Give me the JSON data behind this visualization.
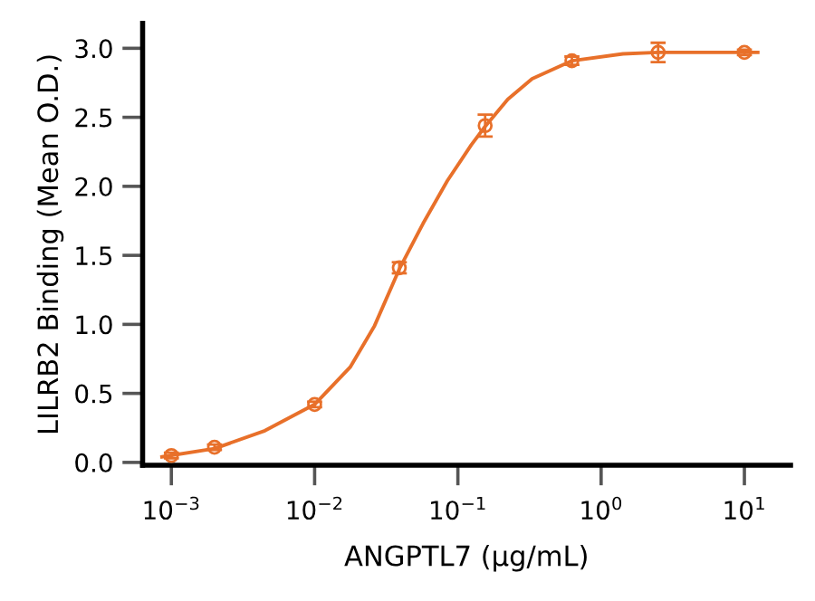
{
  "chart_data": {
    "type": "scatter",
    "xlabel": "ANGPTL7 (µg/mL)",
    "ylabel": "LILRB2 Binding (Mean O.D.)",
    "log": "x",
    "xlim": [
      0.00063,
      21
    ],
    "ylim": [
      -0.02,
      3.18
    ],
    "xticks": [
      {
        "value": 0.001,
        "label": "10$^{−3}$"
      },
      {
        "value": 0.01,
        "label": "10$^{−2}$"
      },
      {
        "value": 0.1,
        "label": "10$^{−1}$"
      },
      {
        "value": 1,
        "label": "10$^{0}$"
      },
      {
        "value": 10,
        "label": "10$^{1}$"
      }
    ],
    "yticks": [
      {
        "value": 0,
        "label": "0.0"
      },
      {
        "value": 0.5,
        "label": "0.5"
      },
      {
        "value": 1,
        "label": "1.0"
      },
      {
        "value": 1.5,
        "label": "1.5"
      },
      {
        "value": 2,
        "label": "2.0"
      },
      {
        "value": 2.5,
        "label": "2.5"
      },
      {
        "value": 3,
        "label": "3.0"
      }
    ],
    "grid": false,
    "legend": false,
    "series": [
      {
        "color": "#e8702a",
        "marker": "circle",
        "x": [
          0.001,
          0.002,
          0.01,
          0.039,
          0.155,
          0.625,
          2.5,
          10
        ],
        "values": [
          0.05,
          0.11,
          0.42,
          1.41,
          2.44,
          2.91,
          2.97,
          2.97
        ],
        "errors": [
          0.02,
          0.02,
          0.02,
          0.04,
          0.08,
          0.03,
          0.07,
          0.02
        ]
      },
      {
        "type": "line",
        "color": "#e8702a",
        "marker": "none",
        "line_style": "solid",
        "x": [
          0.00086,
          0.002,
          0.0045,
          0.01,
          0.0177,
          0.0262,
          0.0394,
          0.0571,
          0.0844,
          0.124,
          0.154,
          0.223,
          0.33,
          0.628,
          1.42,
          2.5,
          6.14,
          12.4
        ],
        "values": [
          0.04,
          0.1,
          0.23,
          0.42,
          0.69,
          0.99,
          1.41,
          1.73,
          2.04,
          2.3,
          2.43,
          2.63,
          2.78,
          2.91,
          2.96,
          2.97,
          2.97,
          2.97
        ]
      }
    ]
  }
}
